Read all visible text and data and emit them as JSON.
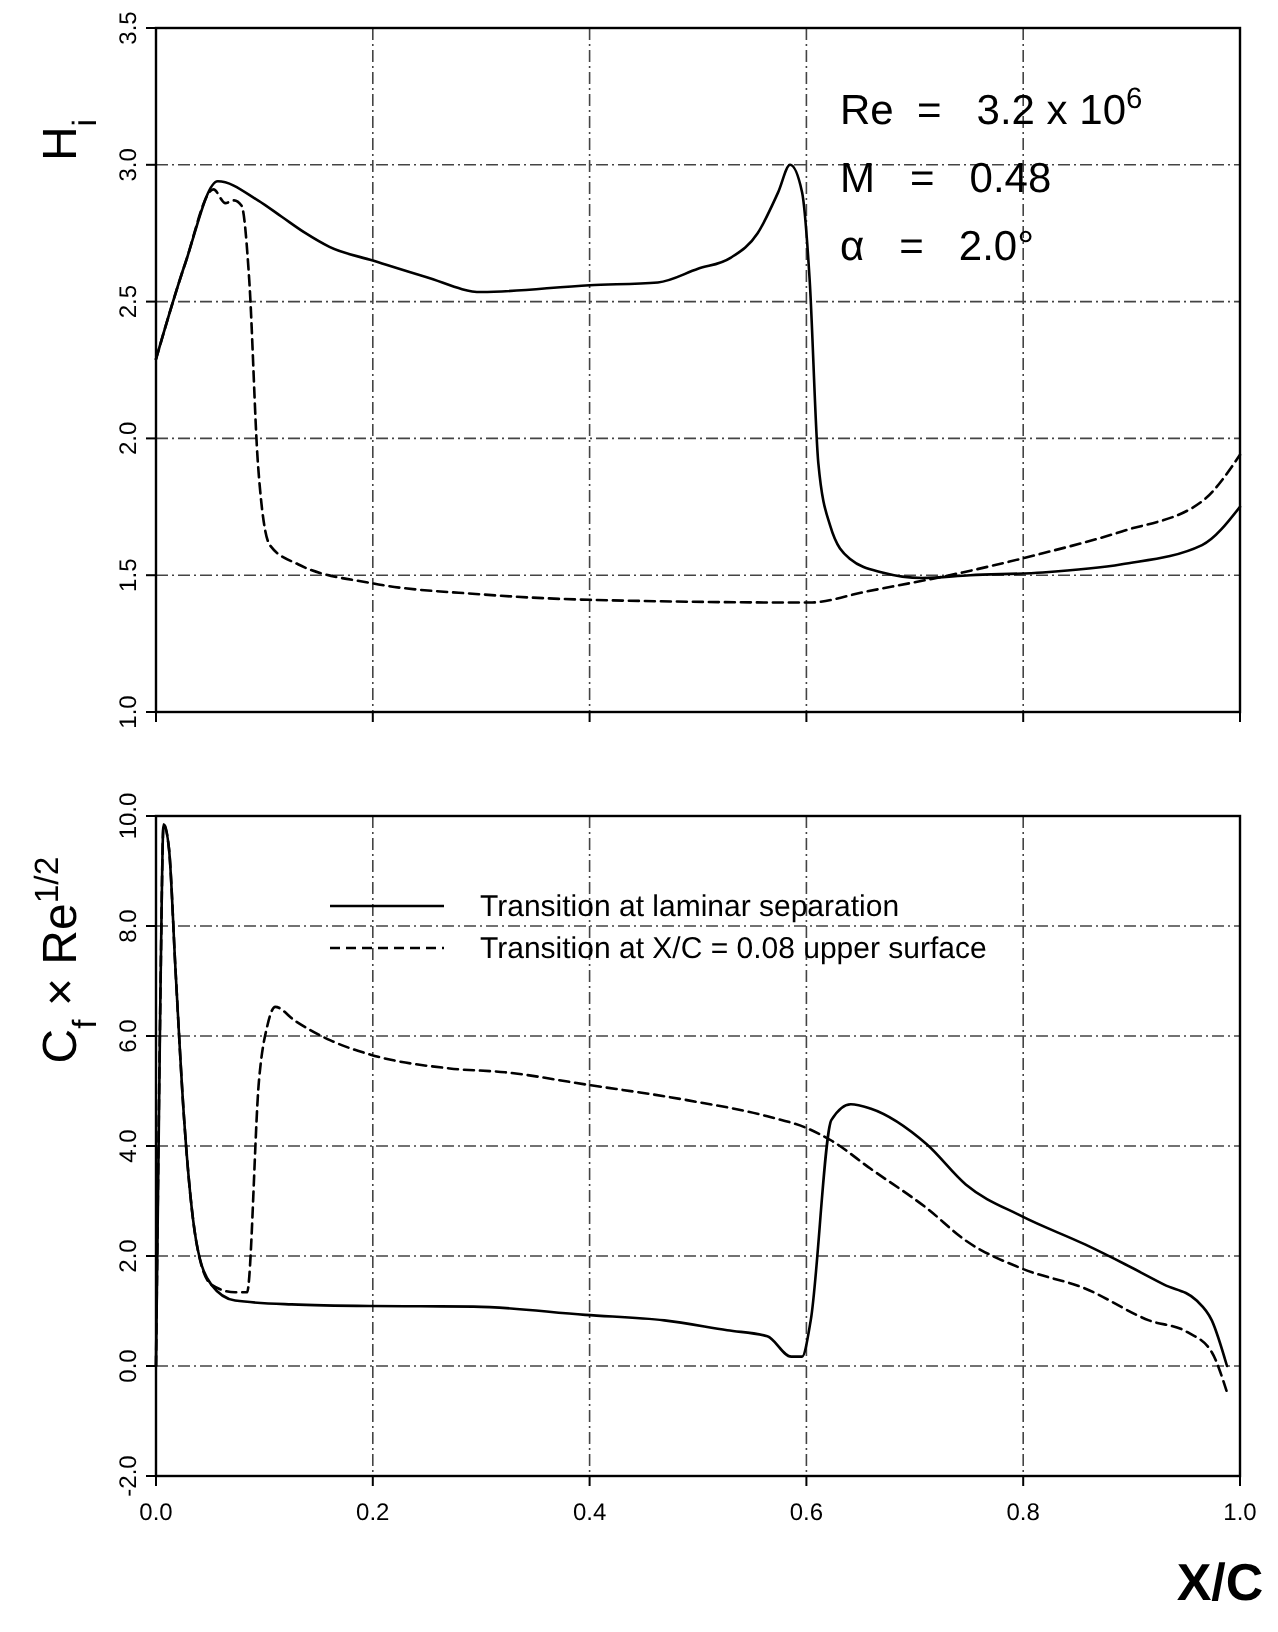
{
  "chart_data": [
    {
      "type": "line",
      "ylabel": "H$_{i}$",
      "xlim": [
        0,
        1
      ],
      "ylim": [
        1,
        3.5
      ],
      "xticks": [
        0,
        0.2,
        0.4,
        0.6,
        0.8,
        1
      ],
      "yticks": [
        {
          "value": 1,
          "label": "1.0"
        },
        {
          "value": 1.5,
          "label": "1.5"
        },
        {
          "value": 2,
          "label": "2.0"
        },
        {
          "value": 2.5,
          "label": "2.5"
        },
        {
          "value": 3,
          "label": "3.0"
        },
        {
          "value": 3.5,
          "label": "3.5"
        }
      ],
      "tick_labels": "y",
      "grid": true,
      "annotations": [
        "Re  =   3.2 x 10$^{6}$",
        "M   =   0.48",
        "α   =   2.0°"
      ],
      "series": [
        {
          "color": "#000000",
          "line_style": "solid",
          "x": [
            0,
            0.027,
            0.057,
            0.094,
            0.116,
            0.138,
            0.16,
            0.2,
            0.249,
            0.3,
            0.4,
            0.463,
            0.5,
            0.53,
            0.555,
            0.574,
            0.585,
            0.596,
            0.603,
            0.611,
            0.622,
            0.64,
            0.67,
            0.707,
            0.751,
            0.818,
            0.891,
            0.965,
            1.0
          ],
          "values": [
            2.29,
            2.64,
            2.94,
            2.87,
            2.81,
            2.75,
            2.7,
            2.65,
            2.59,
            2.535,
            2.56,
            2.57,
            2.62,
            2.66,
            2.75,
            2.9,
            3.0,
            2.9,
            2.58,
            1.91,
            1.68,
            1.56,
            1.51,
            1.49,
            1.5,
            1.51,
            1.54,
            1.61,
            1.75
          ]
        },
        {
          "color": "#000000",
          "line_style": "dashed",
          "x": [
            0,
            0.027,
            0.053,
            0.064,
            0.072,
            0.079,
            0.086,
            0.094,
            0.105,
            0.131,
            0.2,
            0.3,
            0.4,
            0.603,
            0.655,
            0.744,
            0.818,
            0.891,
            0.965,
            1.0
          ],
          "values": [
            2.29,
            2.64,
            2.91,
            2.86,
            2.87,
            2.85,
            2.58,
            1.91,
            1.61,
            1.54,
            1.47,
            1.43,
            1.41,
            1.4,
            1.44,
            1.51,
            1.58,
            1.66,
            1.77,
            1.94
          ]
        }
      ]
    },
    {
      "type": "line",
      "xlabel": "X/C",
      "ylabel": "C$_{f}$  ×  Re$^{1/2}$",
      "xlim": [
        0,
        1
      ],
      "ylim": [
        -2,
        10
      ],
      "xticks": [
        {
          "value": 0,
          "label": "0.0"
        },
        {
          "value": 0.2,
          "label": "0.2"
        },
        {
          "value": 0.4,
          "label": "0.4"
        },
        {
          "value": 0.6,
          "label": "0.6"
        },
        {
          "value": 0.8,
          "label": "0.8"
        },
        {
          "value": 1,
          "label": "1.0"
        }
      ],
      "yticks": [
        {
          "value": -2,
          "label": "-2.0"
        },
        {
          "value": 0,
          "label": "0.0"
        },
        {
          "value": 2,
          "label": "2.0"
        },
        {
          "value": 4,
          "label": "4.0"
        },
        {
          "value": 6,
          "label": "6.0"
        },
        {
          "value": 8,
          "label": "8.0"
        },
        {
          "value": 10,
          "label": "10.0"
        }
      ],
      "grid": true,
      "legend": "top",
      "series": [
        {
          "name": "Transition at laminar separation",
          "color": "#000000",
          "line_style": "solid",
          "x": [
            0,
            0.004,
            0.007,
            0.012,
            0.018,
            0.026,
            0.037,
            0.051,
            0.073,
            0.125,
            0.198,
            0.293,
            0.396,
            0.469,
            0.527,
            0.564,
            0.586,
            0.596,
            0.604,
            0.623,
            0.641,
            0.659,
            0.711,
            0.747,
            0.799,
            0.857,
            0.894,
            0.93,
            0.96,
            0.974,
            0.988
          ],
          "values": [
            0,
            6.65,
            9.85,
            9.4,
            7.2,
            4.47,
            2.28,
            1.48,
            1.19,
            1.12,
            1.09,
            1.08,
            0.93,
            0.83,
            0.65,
            0.54,
            0.17,
            0.17,
            0.83,
            4.47,
            4.76,
            4.68,
            4.03,
            3.3,
            2.72,
            2.21,
            1.85,
            1.48,
            1.19,
            0.83,
            0
          ]
        },
        {
          "name": "Transition at X/C = 0.08 upper surface",
          "color": "#000000",
          "line_style": "dashed",
          "x": [
            0,
            0.004,
            0.007,
            0.012,
            0.018,
            0.026,
            0.037,
            0.051,
            0.073,
            0.084,
            0.095,
            0.103,
            0.11,
            0.128,
            0.161,
            0.198,
            0.271,
            0.322,
            0.396,
            0.491,
            0.564,
            0.601,
            0.623,
            0.659,
            0.711,
            0.747,
            0.799,
            0.857,
            0.916,
            0.952,
            0.974,
            0.988
          ],
          "values": [
            0,
            6.65,
            9.85,
            9.4,
            7.2,
            4.47,
            2.28,
            1.48,
            1.34,
            1.34,
            5.19,
            6.21,
            6.53,
            6.28,
            5.92,
            5.66,
            5.41,
            5.34,
            5.12,
            4.83,
            4.54,
            4.32,
            4.1,
            3.59,
            2.87,
            2.28,
            1.77,
            1.41,
            0.83,
            0.61,
            0.25,
            -0.48
          ]
        }
      ]
    }
  ]
}
